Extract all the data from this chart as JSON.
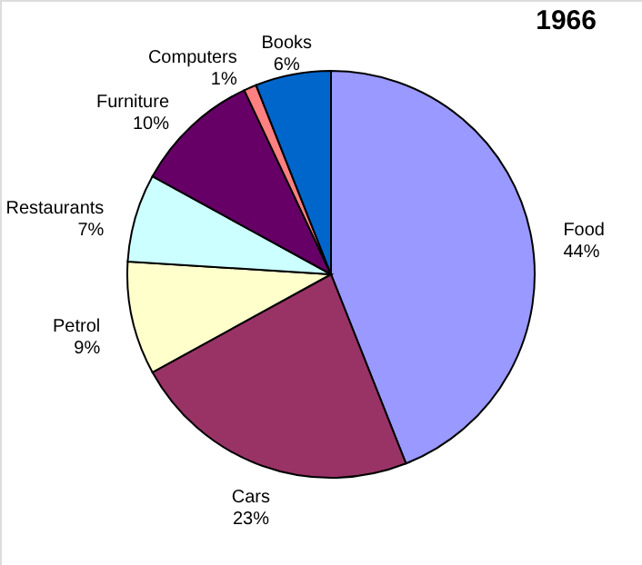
{
  "chart_data": {
    "type": "pie",
    "title": "1966",
    "categories": [
      "Food",
      "Cars",
      "Petrol",
      "Restaurants",
      "Furniture",
      "Computers",
      "Books"
    ],
    "values": [
      44,
      23,
      9,
      7,
      10,
      1,
      6
    ],
    "value_labels": [
      "44%",
      "23%",
      "9%",
      "7%",
      "10%",
      "1%",
      "6%"
    ],
    "colors": [
      "#9999ff",
      "#993366",
      "#ffffcc",
      "#ccffff",
      "#660066",
      "#ff8080",
      "#0066cc"
    ],
    "legend": false
  }
}
